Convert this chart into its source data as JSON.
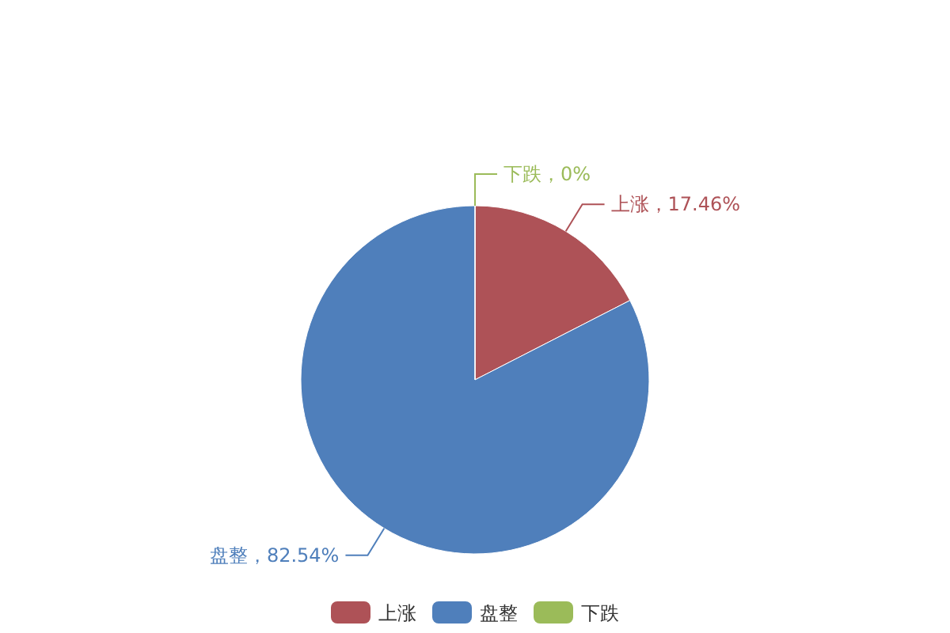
{
  "chart_data": {
    "type": "pie",
    "categories": [
      "上涨",
      "盘整",
      "下跌"
    ],
    "values": [
      17.46,
      82.54,
      0
    ],
    "colors": [
      "#ae5257",
      "#4f7fbb",
      "#9bbb59"
    ],
    "value_labels": [
      "上涨，17.46%",
      "盘整，82.54%",
      "下跌，0%"
    ],
    "legend": "bottom"
  }
}
